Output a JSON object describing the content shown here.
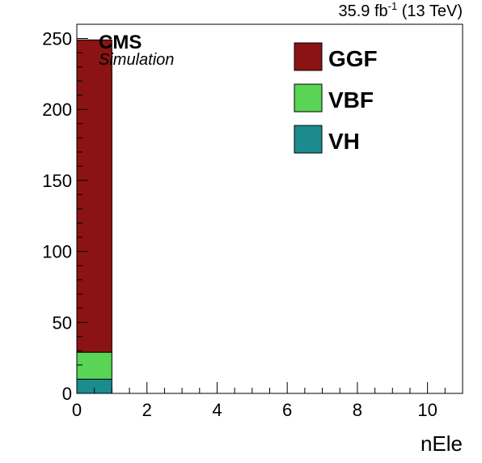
{
  "chart_data": {
    "type": "bar",
    "stacked": true,
    "x_bins": [
      [
        0,
        1
      ],
      [
        1,
        11
      ]
    ],
    "series": [
      {
        "name": "VH",
        "color": "#1b8b8e",
        "values": [
          10,
          0
        ]
      },
      {
        "name": "VBF",
        "color": "#59d454",
        "values": [
          19,
          0
        ]
      },
      {
        "name": "GGF",
        "color": "#8b1313",
        "values": [
          220,
          0
        ]
      }
    ],
    "xlabel": "nEle",
    "ylabel": "",
    "xlim": [
      0,
      11
    ],
    "ylim": [
      0,
      260
    ],
    "x_ticks": [
      0,
      2,
      4,
      6,
      8,
      10
    ],
    "y_ticks": [
      0,
      50,
      100,
      150,
      200,
      250
    ],
    "grid": false,
    "legend_position": "top-right",
    "experiment_label": "CMS",
    "experiment_sublabel": "Simulation",
    "luminosity_prefix": "35.9 fb",
    "luminosity_exponent": "-1",
    "luminosity_suffix": " (13 TeV)"
  }
}
